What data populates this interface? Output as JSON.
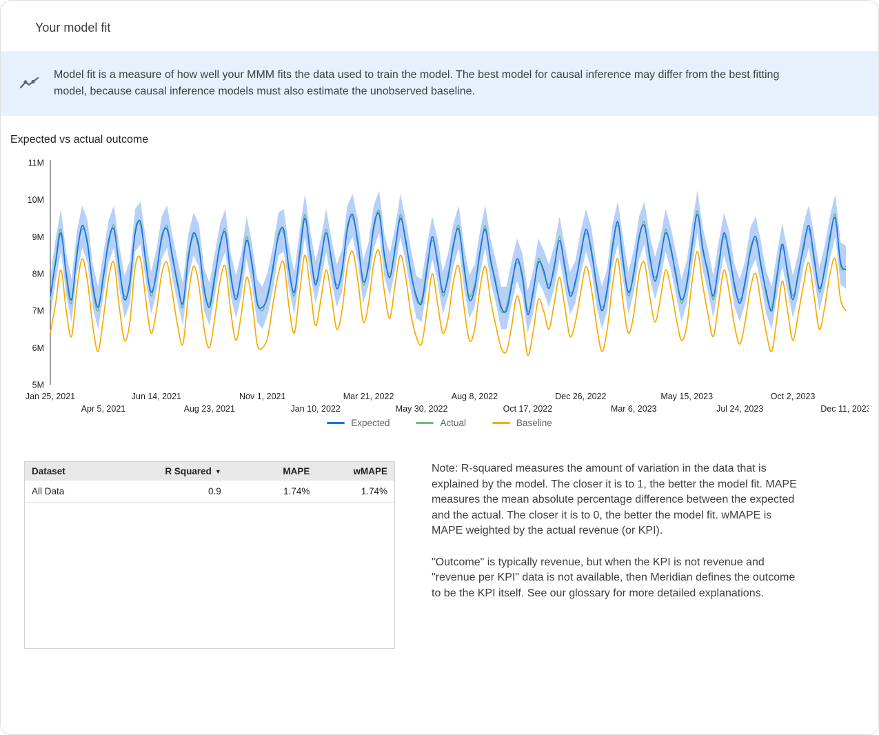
{
  "header": {
    "title": "Your model fit"
  },
  "banner": {
    "icon": "insights-icon",
    "text": "Model fit is a measure of how well your MMM fits the data used to train the model. The best model for causal inference may differ from the best fitting model, because causal inference models must also estimate the unobserved baseline."
  },
  "section": {
    "title": "Expected vs actual outcome"
  },
  "chart_data": {
    "type": "line",
    "title": "Expected vs actual outcome",
    "values_in": "millions",
    "ylim": [
      5,
      11
    ],
    "y_ticks": [
      "5M",
      "6M",
      "7M",
      "8M",
      "9M",
      "10M",
      "11M"
    ],
    "x_tick_step": 10,
    "n_points": 151,
    "x_ticks": [
      "Jan 25, 2021",
      "Apr 5, 2021",
      "Jun 14, 2021",
      "Aug 23, 2021",
      "Nov 1, 2021",
      "Jan 10, 2022",
      "Mar 21, 2022",
      "May 30, 2022",
      "Aug 8, 2022",
      "Oct 17, 2022",
      "Dec 26, 2022",
      "Mar 6, 2023",
      "May 15, 2023",
      "Jul 24, 2023",
      "Oct 2, 2023",
      "Dec 11, 2023"
    ],
    "legend": [
      {
        "name": "Expected",
        "color": "#1a73e8"
      },
      {
        "name": "Actual",
        "color": "#6dbc7c"
      },
      {
        "name": "Baseline",
        "color": "#f9ab00"
      }
    ],
    "band_color": "#aecbfa",
    "band": {
      "upper_offset": 0.55,
      "lower_offset": 0.5
    },
    "series": [
      {
        "name": "Expected",
        "values": [
          7.4,
          8.3,
          9.1,
          8.0,
          7.3,
          8.5,
          9.3,
          8.8,
          7.7,
          7.1,
          7.9,
          8.9,
          9.2,
          8.2,
          7.3,
          7.8,
          9.1,
          9.4,
          8.3,
          7.5,
          8.0,
          9.0,
          9.2,
          8.5,
          7.7,
          7.2,
          8.4,
          9.1,
          8.7,
          7.6,
          7.1,
          7.9,
          8.8,
          9.1,
          8.0,
          7.3,
          8.0,
          8.9,
          8.3,
          7.2,
          7.1,
          7.4,
          8.2,
          9.0,
          9.2,
          8.1,
          7.5,
          8.5,
          9.5,
          8.6,
          7.7,
          8.4,
          9.1,
          8.4,
          7.6,
          8.1,
          9.2,
          9.6,
          8.8,
          7.8,
          8.2,
          9.3,
          9.6,
          8.5,
          7.9,
          8.7,
          9.5,
          8.9,
          8.0,
          7.4,
          7.2,
          8.1,
          9.0,
          8.3,
          7.5,
          7.9,
          8.8,
          9.2,
          8.2,
          7.3,
          7.6,
          8.6,
          9.2,
          8.4,
          7.7,
          7.1,
          7.0,
          7.7,
          8.4,
          7.9,
          6.9,
          7.5,
          8.3,
          8.1,
          7.6,
          8.2,
          8.9,
          8.2,
          7.4,
          7.8,
          8.5,
          9.2,
          8.6,
          7.7,
          7.0,
          7.6,
          8.7,
          9.4,
          8.3,
          7.5,
          8.0,
          9.0,
          9.3,
          8.5,
          7.8,
          8.4,
          9.1,
          8.7,
          7.9,
          7.3,
          7.7,
          8.8,
          9.6,
          8.7,
          8.0,
          7.4,
          8.2,
          9.1,
          8.5,
          7.7,
          7.2,
          7.8,
          8.6,
          9.0,
          8.2,
          7.5,
          7.0,
          7.9,
          8.8,
          8.0,
          7.3,
          8.0,
          8.7,
          9.3,
          8.4,
          7.6,
          8.1,
          9.0,
          9.5,
          8.3,
          8.1
        ]
      },
      {
        "name": "Actual",
        "values": [
          7.3,
          8.4,
          9.2,
          7.9,
          7.2,
          8.6,
          9.2,
          8.9,
          7.6,
          7.0,
          8.0,
          8.8,
          9.3,
          8.1,
          7.4,
          7.7,
          9.2,
          9.3,
          8.4,
          7.4,
          8.1,
          8.9,
          9.3,
          8.4,
          7.8,
          7.1,
          8.5,
          9.0,
          8.8,
          7.5,
          7.2,
          8.0,
          8.7,
          9.2,
          7.9,
          7.4,
          7.9,
          9.0,
          8.2,
          7.3,
          7.0,
          7.5,
          8.1,
          9.1,
          9.1,
          8.2,
          7.4,
          8.6,
          9.6,
          8.5,
          7.8,
          8.3,
          9.2,
          8.3,
          7.7,
          8.0,
          9.3,
          9.5,
          8.9,
          7.7,
          8.3,
          9.2,
          9.7,
          8.4,
          8.0,
          8.6,
          9.6,
          8.8,
          8.1,
          7.3,
          7.3,
          8.2,
          8.9,
          8.4,
          7.4,
          8.0,
          8.7,
          9.3,
          8.1,
          7.4,
          7.7,
          8.5,
          9.3,
          8.3,
          7.8,
          7.0,
          7.1,
          7.8,
          8.3,
          8.0,
          7.0,
          7.4,
          8.4,
          8.0,
          7.7,
          8.1,
          9.0,
          8.1,
          7.5,
          7.7,
          8.6,
          9.1,
          8.7,
          7.6,
          7.1,
          7.5,
          8.8,
          9.3,
          8.4,
          7.4,
          8.1,
          8.9,
          9.4,
          8.4,
          7.9,
          8.3,
          9.2,
          8.6,
          8.0,
          7.2,
          7.8,
          8.7,
          9.7,
          8.6,
          8.1,
          7.3,
          8.3,
          9.0,
          8.6,
          7.6,
          7.3,
          7.7,
          8.7,
          8.9,
          8.3,
          7.4,
          7.1,
          8.0,
          8.7,
          8.1,
          7.4,
          7.9,
          8.8,
          9.2,
          8.5,
          7.5,
          8.2,
          8.9,
          9.6,
          8.2,
          8.2
        ]
      },
      {
        "name": "Baseline",
        "values": [
          6.4,
          7.2,
          8.1,
          7.0,
          6.3,
          7.6,
          8.4,
          7.8,
          6.6,
          5.9,
          6.8,
          7.9,
          8.3,
          7.1,
          6.2,
          6.7,
          8.2,
          8.4,
          7.3,
          6.4,
          7.0,
          8.0,
          8.3,
          7.5,
          6.6,
          6.1,
          7.4,
          8.2,
          7.7,
          6.5,
          6.0,
          6.8,
          7.8,
          8.2,
          7.0,
          6.2,
          6.9,
          7.9,
          7.3,
          6.1,
          6.0,
          6.3,
          7.2,
          8.0,
          8.3,
          7.1,
          6.4,
          7.5,
          8.5,
          7.6,
          6.6,
          7.3,
          8.1,
          7.4,
          6.5,
          7.0,
          8.2,
          8.6,
          7.8,
          6.7,
          7.2,
          8.3,
          8.6,
          7.5,
          6.8,
          7.7,
          8.5,
          7.9,
          6.9,
          6.3,
          6.1,
          7.0,
          8.0,
          7.2,
          6.4,
          6.8,
          7.8,
          8.2,
          7.1,
          6.2,
          6.5,
          7.6,
          8.2,
          7.3,
          6.6,
          6.0,
          5.9,
          6.6,
          7.4,
          6.8,
          5.8,
          6.4,
          7.3,
          7.0,
          6.5,
          7.2,
          7.9,
          7.1,
          6.3,
          6.7,
          7.5,
          8.2,
          7.6,
          6.6,
          5.9,
          6.5,
          7.7,
          8.4,
          7.2,
          6.4,
          6.9,
          8.0,
          8.3,
          7.4,
          6.7,
          7.3,
          8.1,
          7.6,
          6.8,
          6.2,
          6.6,
          7.8,
          8.6,
          7.7,
          6.9,
          6.3,
          7.2,
          8.1,
          7.5,
          6.6,
          6.1,
          6.7,
          7.6,
          8.0,
          7.2,
          6.4,
          5.9,
          6.8,
          7.8,
          7.0,
          6.2,
          6.9,
          7.7,
          8.3,
          7.4,
          6.5,
          7.1,
          8.0,
          8.4,
          7.3,
          7.0
        ]
      }
    ]
  },
  "table": {
    "headers": {
      "dataset": "Dataset",
      "r_squared": "R Squared",
      "mape": "MAPE",
      "wmape": "wMAPE"
    },
    "sort_indicator": "▼",
    "rows": [
      {
        "dataset": "All Data",
        "r_squared": "0.9",
        "mape": "1.74%",
        "wmape": "1.74%"
      }
    ]
  },
  "notes": {
    "p1": "Note: R-squared measures the amount of variation in the data that is explained by the model. The closer it is to 1, the better the model fit. MAPE measures the mean absolute percentage difference between the expected and the actual. The closer it is to 0, the better the model fit. wMAPE is MAPE weighted by the actual revenue (or KPI).",
    "p2": "\"Outcome\" is typically revenue, but when the KPI is not revenue and \"revenue per KPI\" data is not available, then Meridian defines the outcome to be the KPI itself. See our glossary for more detailed explanations."
  }
}
